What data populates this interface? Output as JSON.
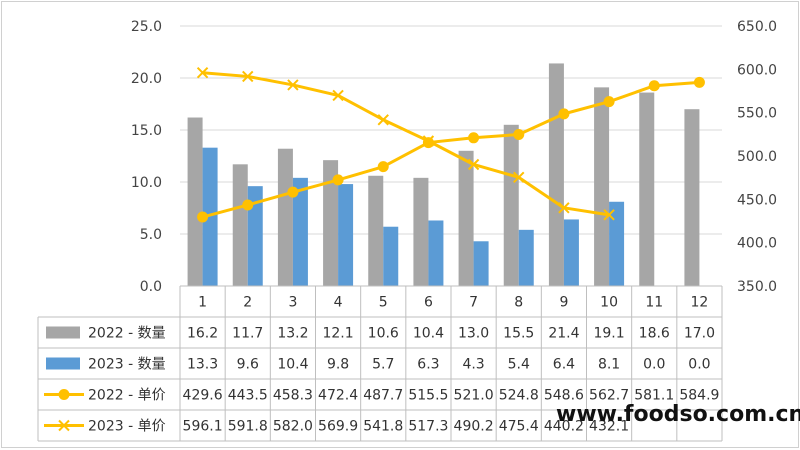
{
  "chart_data": {
    "type": "bar",
    "categories": [
      "1",
      "2",
      "3",
      "4",
      "5",
      "6",
      "7",
      "8",
      "9",
      "10",
      "11",
      "12"
    ],
    "series": [
      {
        "name": "2022 - 数量",
        "kind": "bar",
        "axis": "left",
        "color": "#a6a6a6",
        "values": [
          16.2,
          11.7,
          13.2,
          12.1,
          10.6,
          10.4,
          13.0,
          15.5,
          21.4,
          19.1,
          18.6,
          17.0
        ],
        "labels": [
          "16.2",
          "11.7",
          "13.2",
          "12.1",
          "10.6",
          "10.4",
          "13.0",
          "15.5",
          "21.4",
          "19.1",
          "18.6",
          "17.0"
        ]
      },
      {
        "name": "2023 - 数量",
        "kind": "bar",
        "axis": "left",
        "color": "#5b9bd5",
        "values": [
          13.3,
          9.6,
          10.4,
          9.8,
          5.7,
          6.3,
          4.3,
          5.4,
          6.4,
          8.1,
          0.0,
          0.0
        ],
        "labels": [
          "13.3",
          "9.6",
          "10.4",
          "9.8",
          "5.7",
          "6.3",
          "4.3",
          "5.4",
          "6.4",
          "8.1",
          "0.0",
          "0.0"
        ]
      },
      {
        "name": "2022 - 单价",
        "kind": "line",
        "marker": "circle",
        "axis": "right",
        "color": "#ffc000",
        "values": [
          429.6,
          443.5,
          458.3,
          472.4,
          487.7,
          515.5,
          521.0,
          524.8,
          548.6,
          562.7,
          581.1,
          584.9
        ],
        "labels": [
          "429.6",
          "443.5",
          "458.3",
          "472.4",
          "487.7",
          "515.5",
          "521.0",
          "524.8",
          "548.6",
          "562.7",
          "581.1",
          "584.9"
        ]
      },
      {
        "name": "2023 - 单价",
        "kind": "line",
        "marker": "x",
        "axis": "right",
        "color": "#ffc000",
        "values": [
          596.1,
          591.8,
          582.0,
          569.9,
          541.8,
          517.3,
          490.2,
          475.4,
          440.2,
          432.1,
          null,
          null
        ],
        "labels": [
          "596.1",
          "591.8",
          "582.0",
          "569.9",
          "541.8",
          "517.3",
          "490.2",
          "475.4",
          "440.2",
          "432.1",
          "",
          ""
        ]
      }
    ],
    "y_left": {
      "ylim": [
        0,
        25
      ],
      "ticks": [
        "0.0",
        "5.0",
        "10.0",
        "15.0",
        "20.0",
        "25.0"
      ]
    },
    "y_right": {
      "ylim": [
        350,
        650
      ],
      "ticks": [
        "350.0",
        "400.0",
        "450.0",
        "500.0",
        "550.0",
        "600.0",
        "650.0"
      ]
    },
    "grid": true,
    "legend": "data-table"
  },
  "watermark": "www.foodso.com.cn"
}
